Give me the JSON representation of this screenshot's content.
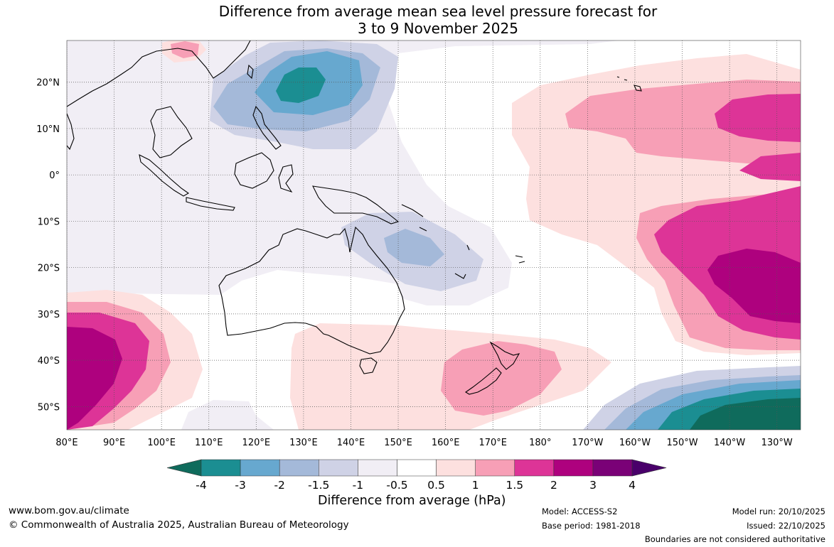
{
  "title": {
    "line1": "Difference from average mean sea level pressure forecast for",
    "line2": "3 to 9 November 2025"
  },
  "map": {
    "lon_labels": [
      "80°E",
      "90°E",
      "100°E",
      "110°E",
      "120°E",
      "130°E",
      "140°E",
      "150°E",
      "160°E",
      "170°E",
      "180°",
      "170°W",
      "160°W",
      "150°W",
      "140°W",
      "130°W"
    ],
    "lat_labels": [
      "20°N",
      "10°N",
      "0°",
      "10°S",
      "20°S",
      "30°S",
      "40°S",
      "50°S"
    ],
    "lon_values": [
      80,
      90,
      100,
      110,
      120,
      130,
      140,
      150,
      160,
      170,
      180,
      190,
      200,
      210,
      220,
      230
    ],
    "lat_values": [
      20,
      10,
      0,
      -10,
      -20,
      -30,
      -40,
      -50
    ],
    "lon_range": [
      80,
      235
    ],
    "lat_range": [
      -55,
      29
    ]
  },
  "colorbar": {
    "title": "Difference from average (hPa)",
    "tick_labels": [
      "-4",
      "-3",
      "-2",
      "-1.5",
      "-1",
      "-0.5",
      "0.5",
      "1",
      "1.5",
      "2",
      "3",
      "4"
    ],
    "colors": [
      "#0f6b5c",
      "#1b8e92",
      "#67a8cf",
      "#a4b9d9",
      "#cfd2e6",
      "#f1eef5",
      "#ffffff",
      "#fde0df",
      "#f79fb6",
      "#dd3497",
      "#ae017e",
      "#7a0177",
      "#49006a"
    ]
  },
  "footer": {
    "website": "www.bom.gov.au/climate",
    "copyright": "© Commonwealth of Australia 2025, Australian Bureau of Meteorology",
    "model": "Model: ACCESS-S2",
    "base_period": "Base period: 1981-2018",
    "model_run": "Model run: 20/10/2025",
    "issued": "Issued: 22/10/2025",
    "disclaimer": "Boundaries are not considered authoritative"
  }
}
